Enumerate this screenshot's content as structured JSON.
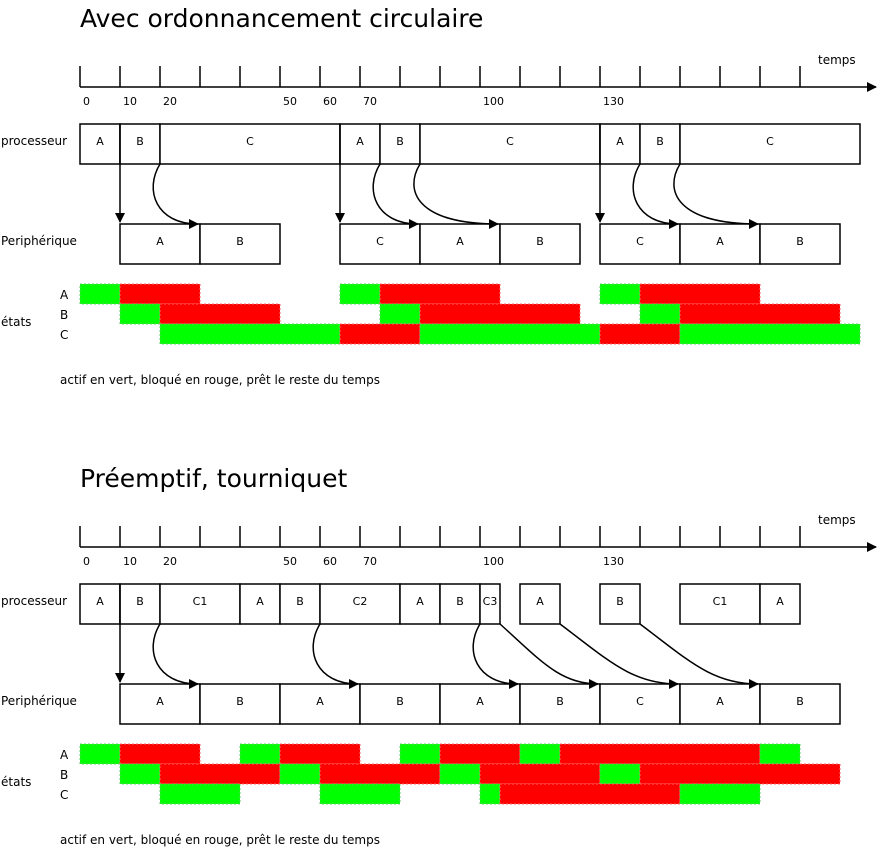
{
  "sections": [
    {
      "title": "Avec ordonnancement circulaire",
      "axis": {
        "label": "temps",
        "ticks": [
          {
            "i": 0,
            "label": "0"
          },
          {
            "i": 1,
            "label": "10"
          },
          {
            "i": 2,
            "label": "20"
          },
          {
            "i": 5,
            "label": "50"
          },
          {
            "i": 6,
            "label": "60"
          },
          {
            "i": 7,
            "label": "70"
          },
          {
            "i": 10,
            "label": "100"
          },
          {
            "i": 13,
            "label": "130"
          }
        ]
      },
      "processor": {
        "label": "processeur",
        "segments": [
          {
            "start": 0,
            "end": 1,
            "label": "A"
          },
          {
            "start": 1,
            "end": 2,
            "label": "B"
          },
          {
            "start": 2,
            "end": 6.5,
            "label": "C"
          },
          {
            "start": 6.5,
            "end": 7.5,
            "label": "A"
          },
          {
            "start": 7.5,
            "end": 8.5,
            "label": "B"
          },
          {
            "start": 8.5,
            "end": 13,
            "label": "C"
          },
          {
            "start": 13,
            "end": 14,
            "label": "A"
          },
          {
            "start": 14,
            "end": 15,
            "label": "B"
          },
          {
            "start": 15,
            "end": 19.5,
            "label": "C"
          }
        ]
      },
      "device": {
        "label": "Periphérique",
        "segments": [
          {
            "start": 1,
            "end": 3,
            "label": "A"
          },
          {
            "start": 3,
            "end": 5,
            "label": "B"
          },
          {
            "start": 6.5,
            "end": 8.5,
            "label": "C"
          },
          {
            "start": 8.5,
            "end": 10.5,
            "label": "A"
          },
          {
            "start": 10.5,
            "end": 12.5,
            "label": "B"
          },
          {
            "start": 13,
            "end": 15,
            "label": "C"
          },
          {
            "start": 15,
            "end": 17,
            "label": "A"
          },
          {
            "start": 17,
            "end": 19,
            "label": "B"
          }
        ]
      },
      "arrows": [
        {
          "kind": "down",
          "at": 1
        },
        {
          "kind": "curve",
          "from": 2,
          "to": 3
        },
        {
          "kind": "down",
          "at": 6.5
        },
        {
          "kind": "curve",
          "from": 7.5,
          "to": 8.5
        },
        {
          "kind": "curve",
          "from": 8.5,
          "to": 10.5
        },
        {
          "kind": "down",
          "at": 13
        },
        {
          "kind": "curve",
          "from": 14,
          "to": 15
        },
        {
          "kind": "curve",
          "from": 15,
          "to": 17
        }
      ],
      "states": {
        "label": "états",
        "rows": [
          {
            "name": "A",
            "bars": [
              {
                "start": 0,
                "end": 1,
                "state": "actif"
              },
              {
                "start": 1,
                "end": 3,
                "state": "bloqué"
              },
              {
                "start": 6.5,
                "end": 7.5,
                "state": "actif"
              },
              {
                "start": 7.5,
                "end": 10.5,
                "state": "bloqué"
              },
              {
                "start": 13,
                "end": 14,
                "state": "actif"
              },
              {
                "start": 14,
                "end": 17,
                "state": "bloqué"
              }
            ]
          },
          {
            "name": "B",
            "bars": [
              {
                "start": 1,
                "end": 2,
                "state": "actif"
              },
              {
                "start": 2,
                "end": 5,
                "state": "bloqué"
              },
              {
                "start": 7.5,
                "end": 8.5,
                "state": "actif"
              },
              {
                "start": 8.5,
                "end": 12.5,
                "state": "bloqué"
              },
              {
                "start": 14,
                "end": 15,
                "state": "actif"
              },
              {
                "start": 15,
                "end": 19,
                "state": "bloqué"
              }
            ]
          },
          {
            "name": "C",
            "bars": [
              {
                "start": 2,
                "end": 6.5,
                "state": "actif"
              },
              {
                "start": 6.5,
                "end": 8.5,
                "state": "bloqué"
              },
              {
                "start": 8.5,
                "end": 13,
                "state": "actif"
              },
              {
                "start": 13,
                "end": 15,
                "state": "bloqué"
              },
              {
                "start": 15,
                "end": 19.5,
                "state": "actif"
              }
            ]
          }
        ]
      },
      "legend": "actif en vert, bloqué en rouge, prêt le reste du temps"
    },
    {
      "title": "Préemptif, tourniquet",
      "axis": {
        "label": "temps",
        "ticks": [
          {
            "i": 0,
            "label": "0"
          },
          {
            "i": 1,
            "label": "10"
          },
          {
            "i": 2,
            "label": "20"
          },
          {
            "i": 5,
            "label": "50"
          },
          {
            "i": 6,
            "label": "60"
          },
          {
            "i": 7,
            "label": "70"
          },
          {
            "i": 10,
            "label": "100"
          },
          {
            "i": 13,
            "label": "130"
          }
        ]
      },
      "processor": {
        "label": "processeur",
        "segments": [
          {
            "start": 0,
            "end": 1,
            "label": "A"
          },
          {
            "start": 1,
            "end": 2,
            "label": "B"
          },
          {
            "start": 2,
            "end": 4,
            "label": "C1"
          },
          {
            "start": 4,
            "end": 5,
            "label": "A"
          },
          {
            "start": 5,
            "end": 6,
            "label": "B"
          },
          {
            "start": 6,
            "end": 8,
            "label": "C2"
          },
          {
            "start": 8,
            "end": 9,
            "label": "A"
          },
          {
            "start": 9,
            "end": 10,
            "label": "B"
          },
          {
            "start": 10,
            "end": 10.5,
            "label": "C3"
          },
          {
            "start": 11,
            "end": 12,
            "label": "A"
          },
          {
            "start": 13,
            "end": 14,
            "label": "B"
          },
          {
            "start": 15,
            "end": 17,
            "label": "C1"
          },
          {
            "start": 17,
            "end": 18,
            "label": "A"
          }
        ]
      },
      "device": {
        "label": "Periphérique",
        "segments": [
          {
            "start": 1,
            "end": 3,
            "label": "A"
          },
          {
            "start": 3,
            "end": 5,
            "label": "B"
          },
          {
            "start": 5,
            "end": 7,
            "label": "A"
          },
          {
            "start": 7,
            "end": 9,
            "label": "B"
          },
          {
            "start": 9,
            "end": 11,
            "label": "A"
          },
          {
            "start": 11,
            "end": 13,
            "label": "B"
          },
          {
            "start": 13,
            "end": 15,
            "label": "C"
          },
          {
            "start": 15,
            "end": 17,
            "label": "A"
          },
          {
            "start": 17,
            "end": 19,
            "label": "B"
          }
        ]
      },
      "arrows": [
        {
          "kind": "down",
          "at": 1
        },
        {
          "kind": "curve",
          "from": 2,
          "to": 3
        },
        {
          "kind": "curve",
          "from": 6,
          "to": 7
        },
        {
          "kind": "curve",
          "from": 10,
          "to": 11
        },
        {
          "kind": "diag",
          "from": 10.5,
          "to": 13
        },
        {
          "kind": "diag",
          "from": 12,
          "to": 15
        },
        {
          "kind": "diag",
          "from": 14,
          "to": 17
        }
      ],
      "states": {
        "label": "états",
        "rows": [
          {
            "name": "A",
            "bars": [
              {
                "start": 0,
                "end": 1,
                "state": "actif"
              },
              {
                "start": 1,
                "end": 3,
                "state": "bloqué"
              },
              {
                "start": 4,
                "end": 5,
                "state": "actif"
              },
              {
                "start": 5,
                "end": 7,
                "state": "bloqué"
              },
              {
                "start": 8,
                "end": 9,
                "state": "actif"
              },
              {
                "start": 9,
                "end": 11,
                "state": "bloqué"
              },
              {
                "start": 11,
                "end": 12,
                "state": "actif"
              },
              {
                "start": 12,
                "end": 17,
                "state": "bloqué"
              },
              {
                "start": 17,
                "end": 18,
                "state": "actif"
              }
            ]
          },
          {
            "name": "B",
            "bars": [
              {
                "start": 1,
                "end": 2,
                "state": "actif"
              },
              {
                "start": 2,
                "end": 5,
                "state": "bloqué"
              },
              {
                "start": 5,
                "end": 6,
                "state": "actif"
              },
              {
                "start": 6,
                "end": 9,
                "state": "bloqué"
              },
              {
                "start": 9,
                "end": 10,
                "state": "actif"
              },
              {
                "start": 10,
                "end": 13,
                "state": "bloqué"
              },
              {
                "start": 13,
                "end": 14,
                "state": "actif"
              },
              {
                "start": 14,
                "end": 19,
                "state": "bloqué"
              }
            ]
          },
          {
            "name": "C",
            "bars": [
              {
                "start": 2,
                "end": 4,
                "state": "actif"
              },
              {
                "start": 6,
                "end": 8,
                "state": "actif"
              },
              {
                "start": 10,
                "end": 10.5,
                "state": "actif"
              },
              {
                "start": 10.5,
                "end": 15,
                "state": "bloqué"
              },
              {
                "start": 15,
                "end": 17,
                "state": "actif"
              }
            ]
          }
        ]
      },
      "legend": "actif en vert, bloqué en rouge, prêt le reste du temps"
    }
  ]
}
